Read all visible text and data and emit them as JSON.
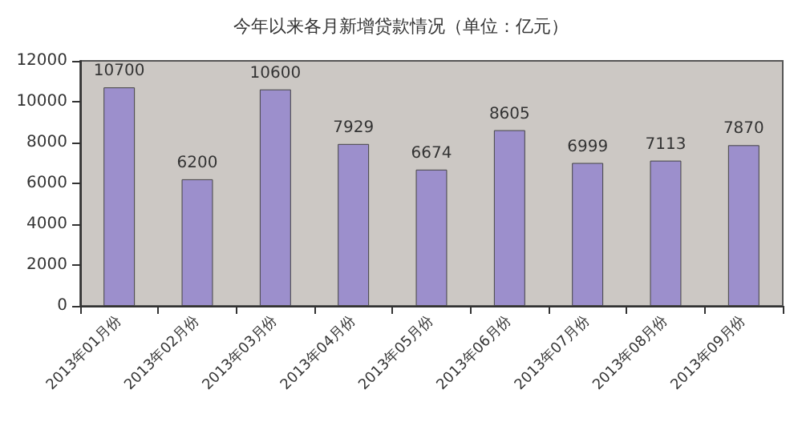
{
  "chart_data": {
    "type": "bar",
    "title": "今年以来各月新增贷款情况（单位：亿元）",
    "categories": [
      "2013年01月份",
      "2013年02月份",
      "2013年03月份",
      "2013年04月份",
      "2013年05月份",
      "2013年06月份",
      "2013年07月份",
      "2013年08月份",
      "2013年09月份"
    ],
    "values": [
      10700,
      6200,
      10600,
      7929,
      6674,
      8605,
      6999,
      7113,
      7870
    ],
    "color": "#9c8fcc",
    "ylim": [
      0,
      12000
    ],
    "yticks": [
      0,
      2000,
      4000,
      6000,
      8000,
      10000,
      12000
    ],
    "grid": false,
    "data_labels": true
  }
}
